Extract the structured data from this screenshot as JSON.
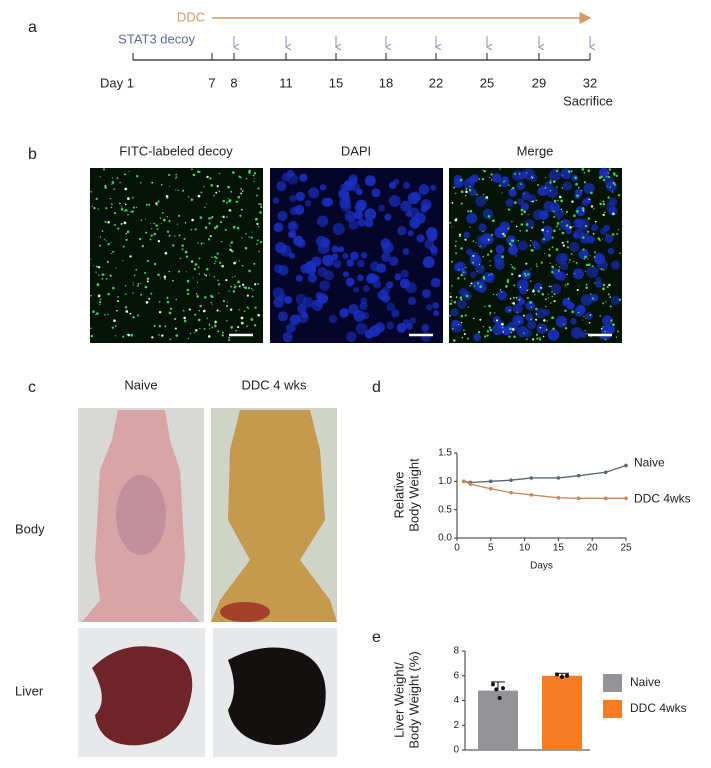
{
  "panels": [
    "a",
    "b",
    "c",
    "d",
    "e"
  ],
  "timeline": {
    "treatment": "DDC",
    "decoy": "STAT3 decoy",
    "start_label": "Day 1",
    "days": [
      7,
      8,
      11,
      15,
      18,
      22,
      25,
      29,
      32
    ],
    "end_label": "Sacrifice"
  },
  "micrographs": [
    "FITC-labeled decoy",
    "DAPI",
    "Merge"
  ],
  "photos": {
    "columns": [
      "Naive",
      "DDC 4 wks"
    ],
    "rows": [
      "Body",
      "Liver"
    ]
  },
  "chart_data": [
    {
      "type": "line",
      "ylabel": [
        "Relative",
        "Body Weight"
      ],
      "xlabel": "Days",
      "x": [
        1,
        2,
        5,
        8,
        11,
        15,
        18,
        22,
        25
      ],
      "series": [
        {
          "name": "Naive",
          "color": "#5b6675",
          "values": [
            1.0,
            0.98,
            1.0,
            1.02,
            1.06,
            1.06,
            1.1,
            1.16,
            1.28
          ]
        },
        {
          "name": "DDC 4wks",
          "color": "#c8875a",
          "values": [
            1.0,
            0.95,
            0.87,
            0.8,
            0.76,
            0.71,
            0.7,
            0.7,
            0.7
          ]
        }
      ],
      "xlim": [
        0,
        25
      ],
      "xticks": [
        0,
        5,
        10,
        15,
        20,
        25
      ],
      "ylim": [
        0,
        1.5
      ],
      "yticks": [
        {
          "value": 0,
          "label": "0.0"
        },
        0.5,
        {
          "value": 1,
          "label": "1.0"
        },
        1.5
      ]
    },
    {
      "type": "bar",
      "ylabel": [
        "Liver Weight/",
        "Body Weight (%)"
      ],
      "series": [
        {
          "name": "Naive",
          "color": "#939398",
          "values": [
            4.8
          ],
          "errors": [
            0.7
          ],
          "points": [
            5.3,
            4.9,
            4.2,
            5.0
          ]
        },
        {
          "name": "DDC 4wks",
          "color": "#f57c26",
          "values": [
            6.0
          ],
          "errors": [
            0.2
          ],
          "points": [
            6.1,
            5.9,
            6.0
          ]
        }
      ],
      "ylim": [
        0,
        8
      ],
      "yticks": [
        0,
        2,
        4,
        6,
        8
      ]
    }
  ]
}
